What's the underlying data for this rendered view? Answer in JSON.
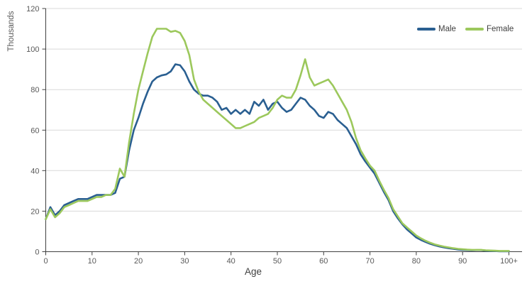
{
  "chart_data": {
    "type": "line",
    "title": "",
    "ylabel": "Thousands",
    "xlabel": "Age",
    "xlim": [
      0,
      100
    ],
    "ylim": [
      0,
      120
    ],
    "grid": "horizontal",
    "legend_position": "top-right-inside",
    "y_ticks": [
      0,
      20,
      40,
      60,
      80,
      100,
      120
    ],
    "x_tick_positions": [
      0,
      10,
      20,
      30,
      40,
      50,
      60,
      70,
      80,
      90,
      100
    ],
    "x_tick_labels": [
      "0",
      "10",
      "20",
      "30",
      "40",
      "50",
      "60",
      "70",
      "80",
      "90",
      "100+"
    ],
    "x": {
      "start": 0,
      "end": 100,
      "step": 1
    },
    "series": [
      {
        "name": "Male",
        "color": "#2A5F91",
        "values": [
          16,
          22,
          18,
          20,
          23,
          24,
          25,
          26,
          26,
          26,
          27,
          28,
          28,
          28,
          28,
          29,
          36,
          37,
          50,
          60,
          66,
          73,
          79,
          84,
          86,
          87,
          87.5,
          89,
          92.5,
          92,
          89,
          84,
          80,
          78,
          77,
          77,
          76,
          74,
          70,
          71,
          68,
          70,
          68,
          70,
          68,
          74,
          72,
          75,
          70,
          73,
          74,
          71,
          69,
          70,
          73,
          76,
          75,
          72,
          70,
          67,
          66,
          69,
          68,
          65,
          63,
          61,
          57,
          53,
          48,
          44.5,
          41.5,
          38.5,
          34,
          29.5,
          25.5,
          20,
          16.5,
          13.5,
          11,
          9,
          7,
          5.8,
          4.8,
          3.9,
          3.2,
          2.6,
          2.1,
          1.7,
          1.4,
          1.1,
          0.9,
          0.8,
          0.7,
          0.8,
          0.8,
          0.5,
          0.4,
          0.3,
          0.2,
          0.2,
          0.2
        ]
      },
      {
        "name": "Female",
        "color": "#9CC85C",
        "values": [
          16,
          21,
          17,
          19,
          22,
          23,
          24,
          25,
          25,
          25,
          26,
          27,
          27,
          28,
          28,
          31,
          41,
          37,
          54,
          68,
          80,
          89,
          98,
          106,
          110,
          110,
          110,
          108.5,
          109,
          108,
          104,
          97,
          85,
          79,
          75,
          73,
          71,
          69,
          67,
          65,
          63,
          61,
          61,
          62,
          63,
          64,
          66,
          67,
          68,
          71,
          75,
          77,
          76,
          76,
          80,
          87,
          95,
          86,
          82,
          83,
          84,
          85,
          82,
          78,
          74,
          70,
          64,
          56,
          50,
          46,
          42.5,
          40,
          35,
          30.5,
          26.5,
          21,
          17.5,
          14,
          12,
          10,
          8,
          6.6,
          5.4,
          4.4,
          3.6,
          3,
          2.5,
          2.1,
          1.7,
          1.4,
          1.2,
          1.0,
          0.9,
          0.9,
          0.9,
          0.7,
          0.6,
          0.5,
          0.4,
          0.4,
          0.4
        ]
      }
    ],
    "colors": {
      "grid": "#D9D9D9",
      "axis": "#404040",
      "tick_text": "#595959",
      "axis_title_text": "#404040",
      "background": "#FFFFFF"
    }
  }
}
